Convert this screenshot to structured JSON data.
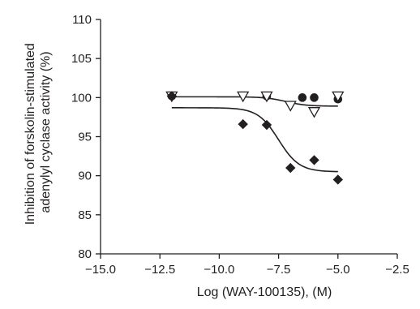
{
  "chart_data": {
    "type": "scatter",
    "xlabel": "Log (WAY-100135), (M)",
    "ylabel": [
      "Inhibition of forskolin-stimulated",
      "adenylyl cyclase activity (%)"
    ],
    "xlim": [
      -15.0,
      -2.5
    ],
    "ylim": [
      80,
      110
    ],
    "xticks": [
      -15.0,
      -12.5,
      -10.0,
      -7.5,
      -5.0,
      -2.5
    ],
    "xtick_labels": [
      "−15.0",
      "−12.5",
      "−10.0",
      "−7.5",
      "−5.0",
      "−2.5"
    ],
    "yticks": [
      80,
      85,
      90,
      95,
      100,
      105,
      110
    ],
    "ytick_labels": [
      "80",
      "85",
      "90",
      "95",
      "100",
      "105",
      "110"
    ],
    "grid": false,
    "series": [
      {
        "marker": "circle",
        "color": "#231f20",
        "points": [
          [
            -12,
            100.2
          ],
          [
            -8,
            100.2
          ],
          [
            -6.5,
            100.0
          ],
          [
            -6,
            100.0
          ],
          [
            -5,
            99.8
          ]
        ]
      },
      {
        "marker": "triangle-down-open",
        "color": "#231f20",
        "points": [
          [
            -12,
            100.2
          ],
          [
            -9,
            100.2
          ],
          [
            -8,
            100.2
          ],
          [
            -7,
            99.0
          ],
          [
            -6,
            98.2
          ],
          [
            -5,
            100.2
          ]
        ]
      },
      {
        "marker": "diamond",
        "color": "#231f20",
        "points": [
          [
            -12,
            100.2
          ],
          [
            -9,
            96.6
          ],
          [
            -8,
            96.5
          ],
          [
            -7,
            91.0
          ],
          [
            -6,
            92.0
          ],
          [
            -5,
            89.5
          ]
        ]
      }
    ],
    "fits": [
      {
        "top": 100.1,
        "bottom": 98.9,
        "logec50": -7.2,
        "hill": 1.0,
        "xrange": [
          -12,
          -5
        ]
      },
      {
        "top": 98.7,
        "bottom": 90.5,
        "logec50": -7.5,
        "hill": 1.0,
        "xrange": [
          -12,
          -5
        ]
      }
    ]
  }
}
